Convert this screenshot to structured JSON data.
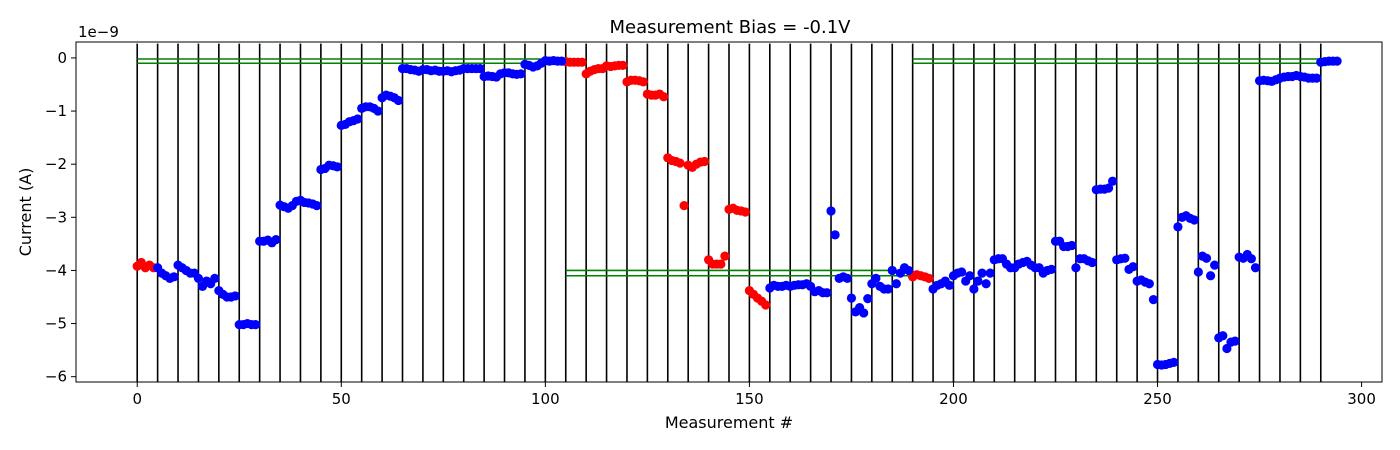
{
  "chart_data": {
    "type": "scatter",
    "title": "Measurement Bias = -0.1V",
    "xlabel": "Measurement #",
    "ylabel": "Current (A)",
    "y_offset_label": "1e−9",
    "xlim": [
      -15,
      305
    ],
    "ylim": [
      -6.1,
      0.3
    ],
    "y_scale_exponent": -9,
    "xticks": [
      0,
      50,
      100,
      150,
      200,
      250,
      300
    ],
    "xtick_labels": [
      "0",
      "50",
      "100",
      "150",
      "200",
      "250",
      "300"
    ],
    "yticks": [
      0,
      -1,
      -2,
      -3,
      -4,
      -5,
      -6
    ],
    "ytick_labels": [
      "0",
      "−1",
      "−2",
      "−3",
      "−4",
      "−5",
      "−6"
    ],
    "grid": false,
    "colors": {
      "blue": "#0000ff",
      "red": "#ff0000",
      "band": "#008000",
      "boundary": "#000000"
    },
    "boundaries": [
      0,
      5,
      10,
      15,
      20,
      25,
      30,
      35,
      40,
      45,
      50,
      55,
      60,
      65,
      70,
      75,
      80,
      85,
      90,
      95,
      100,
      105,
      110,
      115,
      120,
      125,
      130,
      135,
      140,
      145,
      150,
      155,
      160,
      165,
      170,
      175,
      180,
      185,
      190,
      195,
      200,
      205,
      210,
      215,
      220,
      225,
      230,
      235,
      240,
      245,
      250,
      255,
      260,
      265,
      270,
      275,
      280,
      285,
      290
    ],
    "bands": [
      {
        "x": [
          0,
          105
        ],
        "y": [
          -0.02,
          -0.1
        ]
      },
      {
        "x": [
          105,
          190
        ],
        "y": [
          -4.0,
          -4.1
        ]
      },
      {
        "x": [
          190,
          290
        ],
        "y": [
          -0.02,
          -0.1
        ]
      }
    ],
    "series": [
      {
        "color": "red",
        "x": [
          0,
          1,
          2,
          3,
          4,
          105,
          106,
          107,
          108,
          109,
          110,
          111,
          112,
          113,
          114,
          115,
          116,
          117,
          118,
          119,
          120,
          121,
          122,
          123,
          124,
          125,
          126,
          127,
          128,
          129,
          130,
          131,
          132,
          133,
          134,
          135,
          136,
          137,
          138,
          139,
          140,
          141,
          142,
          143,
          144,
          145,
          146,
          147,
          148,
          149,
          150,
          151,
          152,
          153,
          154,
          190,
          191,
          192,
          193,
          194
        ],
        "y": [
          -3.92,
          -3.85,
          -3.95,
          -3.9,
          -3.95,
          -0.07,
          -0.08,
          -0.08,
          -0.08,
          -0.08,
          -0.3,
          -0.25,
          -0.22,
          -0.2,
          -0.2,
          -0.15,
          -0.16,
          -0.15,
          -0.14,
          -0.14,
          -0.45,
          -0.42,
          -0.42,
          -0.43,
          -0.45,
          -0.68,
          -0.7,
          -0.7,
          -0.68,
          -0.73,
          -1.88,
          -1.93,
          -1.95,
          -1.98,
          -2.78,
          -2.02,
          -2.06,
          -2.0,
          -1.96,
          -1.95,
          -3.8,
          -3.88,
          -3.88,
          -3.88,
          -3.73,
          -2.85,
          -2.83,
          -2.87,
          -2.88,
          -2.9,
          -4.38,
          -4.45,
          -4.52,
          -4.58,
          -4.65,
          -4.12,
          -4.08,
          -4.1,
          -4.12,
          -4.15
        ]
      },
      {
        "color": "blue",
        "x": [
          5,
          6,
          7,
          8,
          9,
          10,
          11,
          12,
          13,
          14,
          15,
          16,
          17,
          18,
          19,
          20,
          21,
          22,
          23,
          24,
          25,
          26,
          27,
          28,
          29,
          30,
          31,
          32,
          33,
          34,
          35,
          36,
          37,
          38,
          39,
          40,
          41,
          42,
          43,
          44,
          45,
          46,
          47,
          48,
          49,
          50,
          51,
          52,
          53,
          54,
          55,
          56,
          57,
          58,
          59,
          60,
          61,
          62,
          63,
          64,
          65,
          66,
          67,
          68,
          69,
          70,
          71,
          72,
          73,
          74,
          75,
          76,
          77,
          78,
          79,
          80,
          81,
          82,
          83,
          84,
          85,
          86,
          87,
          88,
          89,
          90,
          91,
          92,
          93,
          94,
          95,
          96,
          97,
          98,
          99,
          100,
          101,
          102,
          103,
          104,
          155,
          156,
          157,
          158,
          159,
          160,
          161,
          162,
          163,
          164,
          165,
          166,
          167,
          168,
          169,
          170,
          171,
          172,
          173,
          174,
          175,
          176,
          177,
          178,
          179,
          180,
          181,
          182,
          183,
          184,
          185,
          186,
          187,
          188,
          189,
          195,
          196,
          197,
          198,
          199,
          200,
          201,
          202,
          203,
          204,
          205,
          206,
          207,
          208,
          209,
          210,
          211,
          212,
          213,
          214,
          215,
          216,
          217,
          218,
          219,
          220,
          221,
          222,
          223,
          224,
          225,
          226,
          227,
          228,
          229,
          230,
          231,
          232,
          233,
          234,
          235,
          236,
          237,
          238,
          239,
          240,
          241,
          242,
          243,
          244,
          245,
          246,
          247,
          248,
          249,
          250,
          251,
          252,
          253,
          254,
          255,
          256,
          257,
          258,
          259,
          260,
          261,
          262,
          263,
          264,
          265,
          266,
          267,
          268,
          269,
          270,
          271,
          272,
          273,
          274,
          275,
          276,
          277,
          278,
          279,
          280,
          281,
          282,
          283,
          284,
          285,
          286,
          287,
          288,
          289,
          290,
          291,
          292,
          293,
          294
        ],
        "y": [
          -3.95,
          -4.05,
          -4.1,
          -4.15,
          -4.12,
          -3.9,
          -3.95,
          -4.0,
          -4.05,
          -4.05,
          -4.15,
          -4.3,
          -4.2,
          -4.25,
          -4.15,
          -4.38,
          -4.45,
          -4.5,
          -4.5,
          -4.48,
          -5.02,
          -5.02,
          -5.0,
          -5.02,
          -5.02,
          -3.45,
          -3.45,
          -3.43,
          -3.48,
          -3.42,
          -2.77,
          -2.8,
          -2.83,
          -2.78,
          -2.7,
          -2.68,
          -2.72,
          -2.73,
          -2.75,
          -2.78,
          -2.1,
          -2.08,
          -2.02,
          -2.03,
          -2.05,
          -1.27,
          -1.25,
          -1.2,
          -1.18,
          -1.15,
          -0.95,
          -0.92,
          -0.92,
          -0.95,
          -1.0,
          -0.75,
          -0.7,
          -0.72,
          -0.75,
          -0.8,
          -0.2,
          -0.2,
          -0.22,
          -0.23,
          -0.25,
          -0.22,
          -0.22,
          -0.24,
          -0.23,
          -0.25,
          -0.25,
          -0.24,
          -0.26,
          -0.24,
          -0.23,
          -0.2,
          -0.2,
          -0.2,
          -0.2,
          -0.2,
          -0.35,
          -0.34,
          -0.35,
          -0.36,
          -0.3,
          -0.28,
          -0.28,
          -0.3,
          -0.31,
          -0.3,
          -0.12,
          -0.14,
          -0.17,
          -0.15,
          -0.1,
          -0.05,
          -0.06,
          -0.05,
          -0.06,
          -0.06,
          -4.33,
          -4.28,
          -4.3,
          -4.3,
          -4.28,
          -4.3,
          -4.28,
          -4.27,
          -4.27,
          -4.25,
          -4.3,
          -4.4,
          -4.38,
          -4.42,
          -4.42,
          -2.88,
          -3.33,
          -4.15,
          -4.12,
          -4.15,
          -4.52,
          -4.78,
          -4.7,
          -4.8,
          -4.53,
          -4.25,
          -4.15,
          -4.3,
          -4.35,
          -4.35,
          -4.0,
          -4.25,
          -4.05,
          -3.95,
          -4.0,
          -4.35,
          -4.28,
          -4.25,
          -4.2,
          -4.28,
          -4.1,
          -4.05,
          -4.03,
          -4.2,
          -4.1,
          -4.35,
          -4.2,
          -4.05,
          -4.25,
          -4.05,
          -3.8,
          -3.78,
          -3.78,
          -3.88,
          -3.95,
          -3.95,
          -3.88,
          -3.85,
          -3.83,
          -3.9,
          -3.95,
          -3.95,
          -4.05,
          -4.0,
          -3.98,
          -3.45,
          -3.45,
          -3.55,
          -3.55,
          -3.53,
          -3.95,
          -3.78,
          -3.78,
          -3.82,
          -3.85,
          -2.48,
          -2.47,
          -2.47,
          -2.45,
          -2.32,
          -3.8,
          -3.78,
          -3.77,
          -3.98,
          -3.93,
          -4.2,
          -4.18,
          -4.22,
          -4.25,
          -4.55,
          -5.77,
          -5.78,
          -5.77,
          -5.75,
          -5.73,
          -3.18,
          -3.0,
          -2.97,
          -3.02,
          -3.05,
          -4.03,
          -3.73,
          -3.77,
          -4.1,
          -3.9,
          -5.27,
          -5.23,
          -5.47,
          -5.35,
          -5.33,
          -3.75,
          -3.77,
          -3.7,
          -3.78,
          -3.95,
          -0.43,
          -0.42,
          -0.43,
          -0.44,
          -0.41,
          -0.38,
          -0.36,
          -0.35,
          -0.35,
          -0.33,
          -0.35,
          -0.36,
          -0.38,
          -0.38,
          -0.38,
          -0.08,
          -0.07,
          -0.06,
          -0.06,
          -0.06
        ]
      }
    ]
  }
}
